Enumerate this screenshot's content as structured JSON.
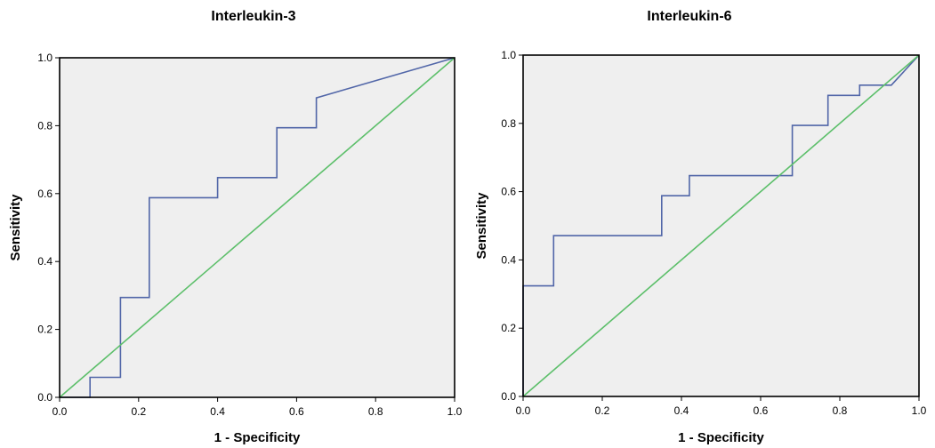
{
  "colors": {
    "roc": "#5166a8",
    "reference": "#5cbf6a",
    "plot_background": "#efefef"
  },
  "chart_data": [
    {
      "type": "line",
      "title": "Interleukin-3",
      "xlabel": "1 - Specificity",
      "ylabel": "Sensitivity",
      "xlim": [
        0,
        1
      ],
      "ylim": [
        0,
        1
      ],
      "xticks": [
        "0.0",
        "0.2",
        "0.4",
        "0.6",
        "0.8",
        "1.0"
      ],
      "yticks": [
        "0.0",
        "0.2",
        "0.4",
        "0.6",
        "0.8",
        "1.0"
      ],
      "grid": false,
      "series": [
        {
          "role": "roc-curve",
          "x": [
            0,
            0.077,
            0.077,
            0.154,
            0.154,
            0.227,
            0.227,
            0.4,
            0.4,
            0.55,
            0.55,
            0.65,
            0.65,
            1.0
          ],
          "y": [
            0,
            0,
            0.059,
            0.059,
            0.294,
            0.294,
            0.588,
            0.588,
            0.647,
            0.647,
            0.794,
            0.794,
            0.882,
            1.0
          ]
        },
        {
          "role": "reference-line",
          "x": [
            0,
            1
          ],
          "y": [
            0,
            1
          ]
        }
      ]
    },
    {
      "type": "line",
      "title": "Interleukin-6",
      "xlabel": "1 - Specificity",
      "ylabel": "Sensitivity",
      "xlim": [
        0,
        1
      ],
      "ylim": [
        0,
        1
      ],
      "xticks": [
        "0.0",
        "0.2",
        "0.4",
        "0.6",
        "0.8",
        "1.0"
      ],
      "yticks": [
        "0.0",
        "0.2",
        "0.4",
        "0.6",
        "0.8",
        "1.0"
      ],
      "grid": false,
      "series": [
        {
          "role": "roc-curve",
          "x": [
            0,
            0,
            0.077,
            0.077,
            0.35,
            0.35,
            0.42,
            0.42,
            0.68,
            0.68,
            0.77,
            0.77,
            0.85,
            0.85,
            0.93,
            1.0
          ],
          "y": [
            0,
            0.324,
            0.324,
            0.471,
            0.471,
            0.588,
            0.588,
            0.647,
            0.647,
            0.794,
            0.794,
            0.882,
            0.882,
            0.912,
            0.912,
            1.0
          ]
        },
        {
          "role": "reference-line",
          "x": [
            0,
            1
          ],
          "y": [
            0,
            1
          ]
        }
      ]
    }
  ]
}
